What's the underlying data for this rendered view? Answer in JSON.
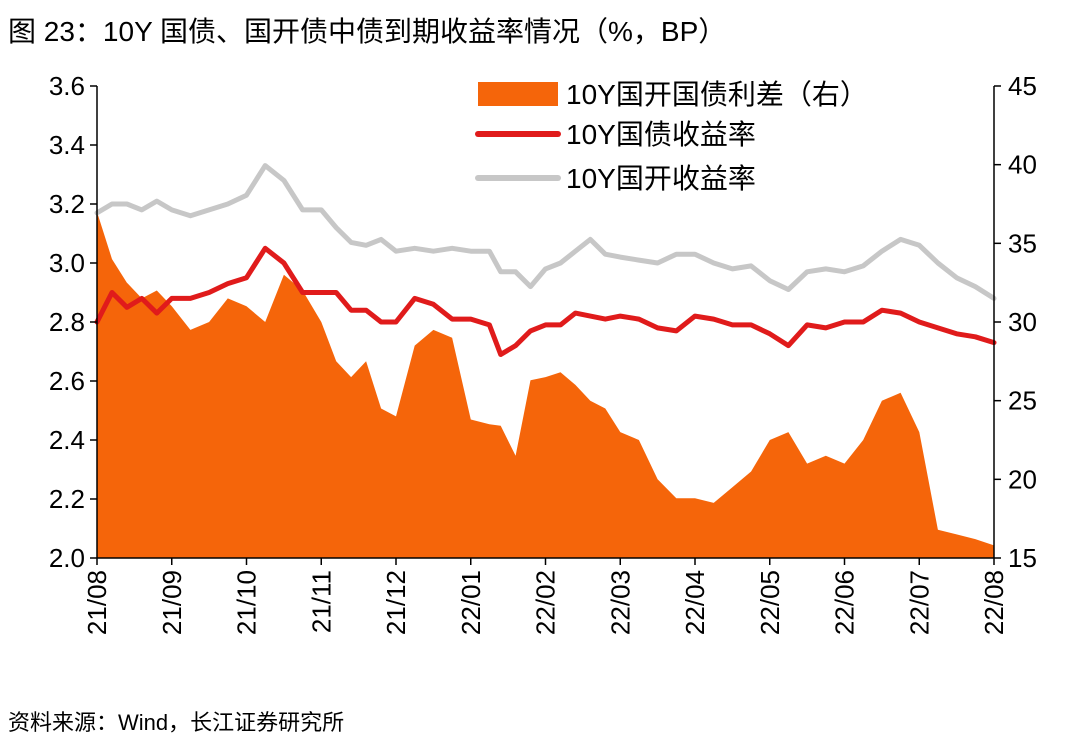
{
  "figure": {
    "title": "图 23：10Y 国债、国开债中债到期收益率情况（%，BP）",
    "source": "资料来源：Wind，长江证券研究所"
  },
  "colors": {
    "spread": "#f5650a",
    "cgb": "#e01b1b",
    "cdb": "#c7c7c7",
    "axis": "#000000"
  },
  "chart_data": {
    "type": "line",
    "title": "10Y 国债、国开债中债到期收益率情况（%，BP）",
    "x_tick_labels": [
      "21/08",
      "21/09",
      "21/10",
      "21/11",
      "21/12",
      "22/01",
      "22/02",
      "22/03",
      "22/04",
      "22/05",
      "22/06",
      "22/07",
      "22/08"
    ],
    "y_left": {
      "min": 2.0,
      "max": 3.6,
      "ticks": [
        "2.0",
        "2.2",
        "2.4",
        "2.6",
        "2.8",
        "3.0",
        "3.2",
        "3.4",
        "3.6"
      ]
    },
    "y_right": {
      "min": 15,
      "max": 45,
      "ticks": [
        "15",
        "20",
        "25",
        "30",
        "35",
        "40",
        "45"
      ]
    },
    "legend": [
      "10Y国开国债利差（右）",
      "10Y国债收益率",
      "10Y国开收益率"
    ],
    "x_month_index": [
      0,
      0.2,
      0.4,
      0.6,
      0.8,
      1,
      1.25,
      1.5,
      1.75,
      2,
      2.25,
      2.5,
      2.75,
      3,
      3.2,
      3.4,
      3.6,
      3.8,
      4,
      4.25,
      4.5,
      4.75,
      5,
      5.25,
      5.4,
      5.6,
      5.8,
      6,
      6.2,
      6.4,
      6.6,
      6.8,
      7,
      7.25,
      7.5,
      7.75,
      8,
      8.25,
      8.5,
      8.75,
      9,
      9.25,
      9.5,
      9.75,
      10,
      10.25,
      10.5,
      10.75,
      11,
      11.25,
      11.5,
      11.75,
      12
    ],
    "series": [
      {
        "name": "10Y国开国债利差（右）",
        "axis": "right",
        "type": "area",
        "values": [
          37,
          34,
          32.5,
          31.5,
          32,
          31,
          29.5,
          30,
          31.5,
          31,
          30,
          33,
          32,
          30,
          27.5,
          26.5,
          27.5,
          24.5,
          24,
          28.5,
          29.5,
          29,
          23.8,
          23.5,
          23.4,
          21.5,
          26.3,
          26.5,
          26.8,
          26,
          25,
          24.5,
          23,
          22.5,
          20,
          18.8,
          18.8,
          18.5,
          19.5,
          20.5,
          22.5,
          23,
          21,
          21.5,
          21,
          22.5,
          25,
          25.5,
          23,
          16.8,
          16.5,
          16.2,
          15.8
        ]
      },
      {
        "name": "10Y国债收益率",
        "axis": "left",
        "type": "line",
        "values": [
          2.8,
          2.9,
          2.85,
          2.88,
          2.83,
          2.88,
          2.88,
          2.9,
          2.93,
          2.95,
          3.05,
          3.0,
          2.9,
          2.9,
          2.9,
          2.84,
          2.84,
          2.8,
          2.8,
          2.88,
          2.86,
          2.81,
          2.81,
          2.79,
          2.69,
          2.72,
          2.77,
          2.79,
          2.79,
          2.83,
          2.82,
          2.81,
          2.82,
          2.81,
          2.78,
          2.77,
          2.82,
          2.81,
          2.79,
          2.79,
          2.76,
          2.72,
          2.79,
          2.78,
          2.8,
          2.8,
          2.84,
          2.83,
          2.8,
          2.78,
          2.76,
          2.75,
          2.73
        ]
      },
      {
        "name": "10Y国开收益率",
        "axis": "left",
        "type": "line",
        "values": [
          3.17,
          3.2,
          3.2,
          3.18,
          3.21,
          3.18,
          3.16,
          3.18,
          3.2,
          3.23,
          3.33,
          3.28,
          3.18,
          3.18,
          3.12,
          3.07,
          3.06,
          3.08,
          3.04,
          3.05,
          3.04,
          3.05,
          3.04,
          3.04,
          2.97,
          2.97,
          2.92,
          2.98,
          3.0,
          3.04,
          3.08,
          3.03,
          3.02,
          3.01,
          3.0,
          3.03,
          3.03,
          3.0,
          2.98,
          2.99,
          2.94,
          2.91,
          2.97,
          2.98,
          2.97,
          2.99,
          3.04,
          3.08,
          3.06,
          3.0,
          2.95,
          2.92,
          2.88
        ]
      }
    ]
  }
}
